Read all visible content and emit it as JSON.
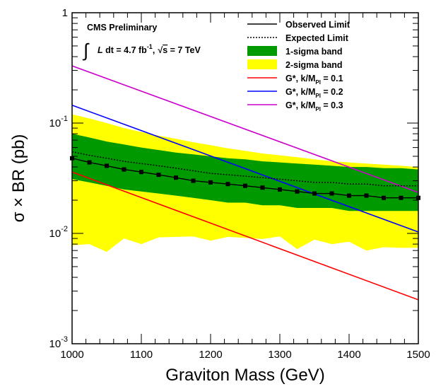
{
  "chart_data": {
    "type": "line",
    "title": "",
    "xlabel": "Graviton Mass (GeV)",
    "ylabel": "σ × BR (pb)",
    "xlim": [
      1000,
      1500
    ],
    "ylim": [
      0.001,
      1
    ],
    "yscale": "log",
    "grid": false,
    "legend_position": "top-right",
    "x_ticks": [
      1000,
      1100,
      1200,
      1300,
      1400,
      1500
    ],
    "y_ticks": [
      {
        "value": 0.001,
        "base": "10",
        "exp": "-3"
      },
      {
        "value": 0.01,
        "base": "10",
        "exp": "-2"
      },
      {
        "value": 0.1,
        "base": "10",
        "exp": "-1"
      },
      {
        "value": 1,
        "base": "1",
        "exp": ""
      }
    ],
    "annotation": {
      "experiment": "CMS Preliminary",
      "lumi_prefix": "∫",
      "lumi_L": "L",
      "lumi_dt": " dt = 4.7 fb",
      "lumi_exp": "-1",
      "lumi_comma": ",",
      "lumi_energy_sqrt": "√",
      "lumi_energy_s": "s",
      "lumi_energy_rest": " = 7 TeV"
    },
    "legend": [
      {
        "key": "observed",
        "label": "Observed Limit",
        "sub": "",
        "tail": ""
      },
      {
        "key": "expected",
        "label": "Expected Limit",
        "sub": "",
        "tail": ""
      },
      {
        "key": "band1",
        "label": "1-sigma band",
        "sub": "",
        "tail": ""
      },
      {
        "key": "band2",
        "label": "2-sigma band",
        "sub": "",
        "tail": ""
      },
      {
        "key": "g01",
        "label": "G*, k/M",
        "sub": "Pl",
        "tail": " = 0.1"
      },
      {
        "key": "g02",
        "label": "G*, k/M",
        "sub": "Pl",
        "tail": " = 0.2"
      },
      {
        "key": "g03",
        "label": "G*, k/M",
        "sub": "Pl",
        "tail": " = 0.3"
      }
    ],
    "x": [
      1000,
      1025,
      1050,
      1075,
      1100,
      1125,
      1150,
      1175,
      1200,
      1225,
      1250,
      1275,
      1300,
      1325,
      1350,
      1375,
      1400,
      1425,
      1450,
      1475,
      1500
    ],
    "observed": [
      0.048,
      0.044,
      0.041,
      0.038,
      0.036,
      0.034,
      0.032,
      0.03,
      0.029,
      0.028,
      0.027,
      0.026,
      0.025,
      0.024,
      0.023,
      0.023,
      0.022,
      0.022,
      0.021,
      0.021,
      0.021
    ],
    "expected": [
      0.055,
      0.051,
      0.048,
      0.045,
      0.043,
      0.041,
      0.039,
      0.037,
      0.035,
      0.034,
      0.033,
      0.032,
      0.031,
      0.03,
      0.029,
      0.029,
      0.028,
      0.028,
      0.027,
      0.027,
      0.027
    ],
    "band1_low": [
      0.031,
      0.029,
      0.027,
      0.025,
      0.024,
      0.023,
      0.022,
      0.021,
      0.02,
      0.019,
      0.019,
      0.018,
      0.018,
      0.017,
      0.017,
      0.017,
      0.016,
      0.016,
      0.016,
      0.016,
      0.016
    ],
    "band1_high": [
      0.08,
      0.074,
      0.068,
      0.064,
      0.06,
      0.057,
      0.054,
      0.052,
      0.05,
      0.048,
      0.047,
      0.045,
      0.044,
      0.043,
      0.042,
      0.041,
      0.04,
      0.04,
      0.039,
      0.039,
      0.038
    ],
    "band2_low": [
      0.0078,
      0.008,
      0.0068,
      0.009,
      0.008,
      0.0092,
      0.0093,
      0.0094,
      0.0086,
      0.0093,
      0.0091,
      0.0089,
      0.0094,
      0.0072,
      0.0088,
      0.008,
      0.0084,
      0.007,
      0.0075,
      0.0074,
      0.0074
    ],
    "band2_high": [
      0.12,
      0.11,
      0.1,
      0.09,
      0.083,
      0.077,
      0.072,
      0.067,
      0.063,
      0.059,
      0.056,
      0.053,
      0.051,
      0.049,
      0.047,
      0.045,
      0.044,
      0.043,
      0.042,
      0.041,
      0.04
    ],
    "g01": {
      "x": [
        1000,
        1500
      ],
      "y": [
        0.036,
        0.0025
      ]
    },
    "g02": {
      "x": [
        1000,
        1500
      ],
      "y": [
        0.145,
        0.0103
      ]
    },
    "g03": {
      "x": [
        1000,
        1500
      ],
      "y": [
        0.33,
        0.0235
      ]
    },
    "colors": {
      "band1": "#009900",
      "band2": "#ffff00",
      "g01": "#ff0000",
      "g02": "#0000ff",
      "g03": "#cc00cc",
      "observed": "#000000",
      "expected": "#000000"
    }
  }
}
